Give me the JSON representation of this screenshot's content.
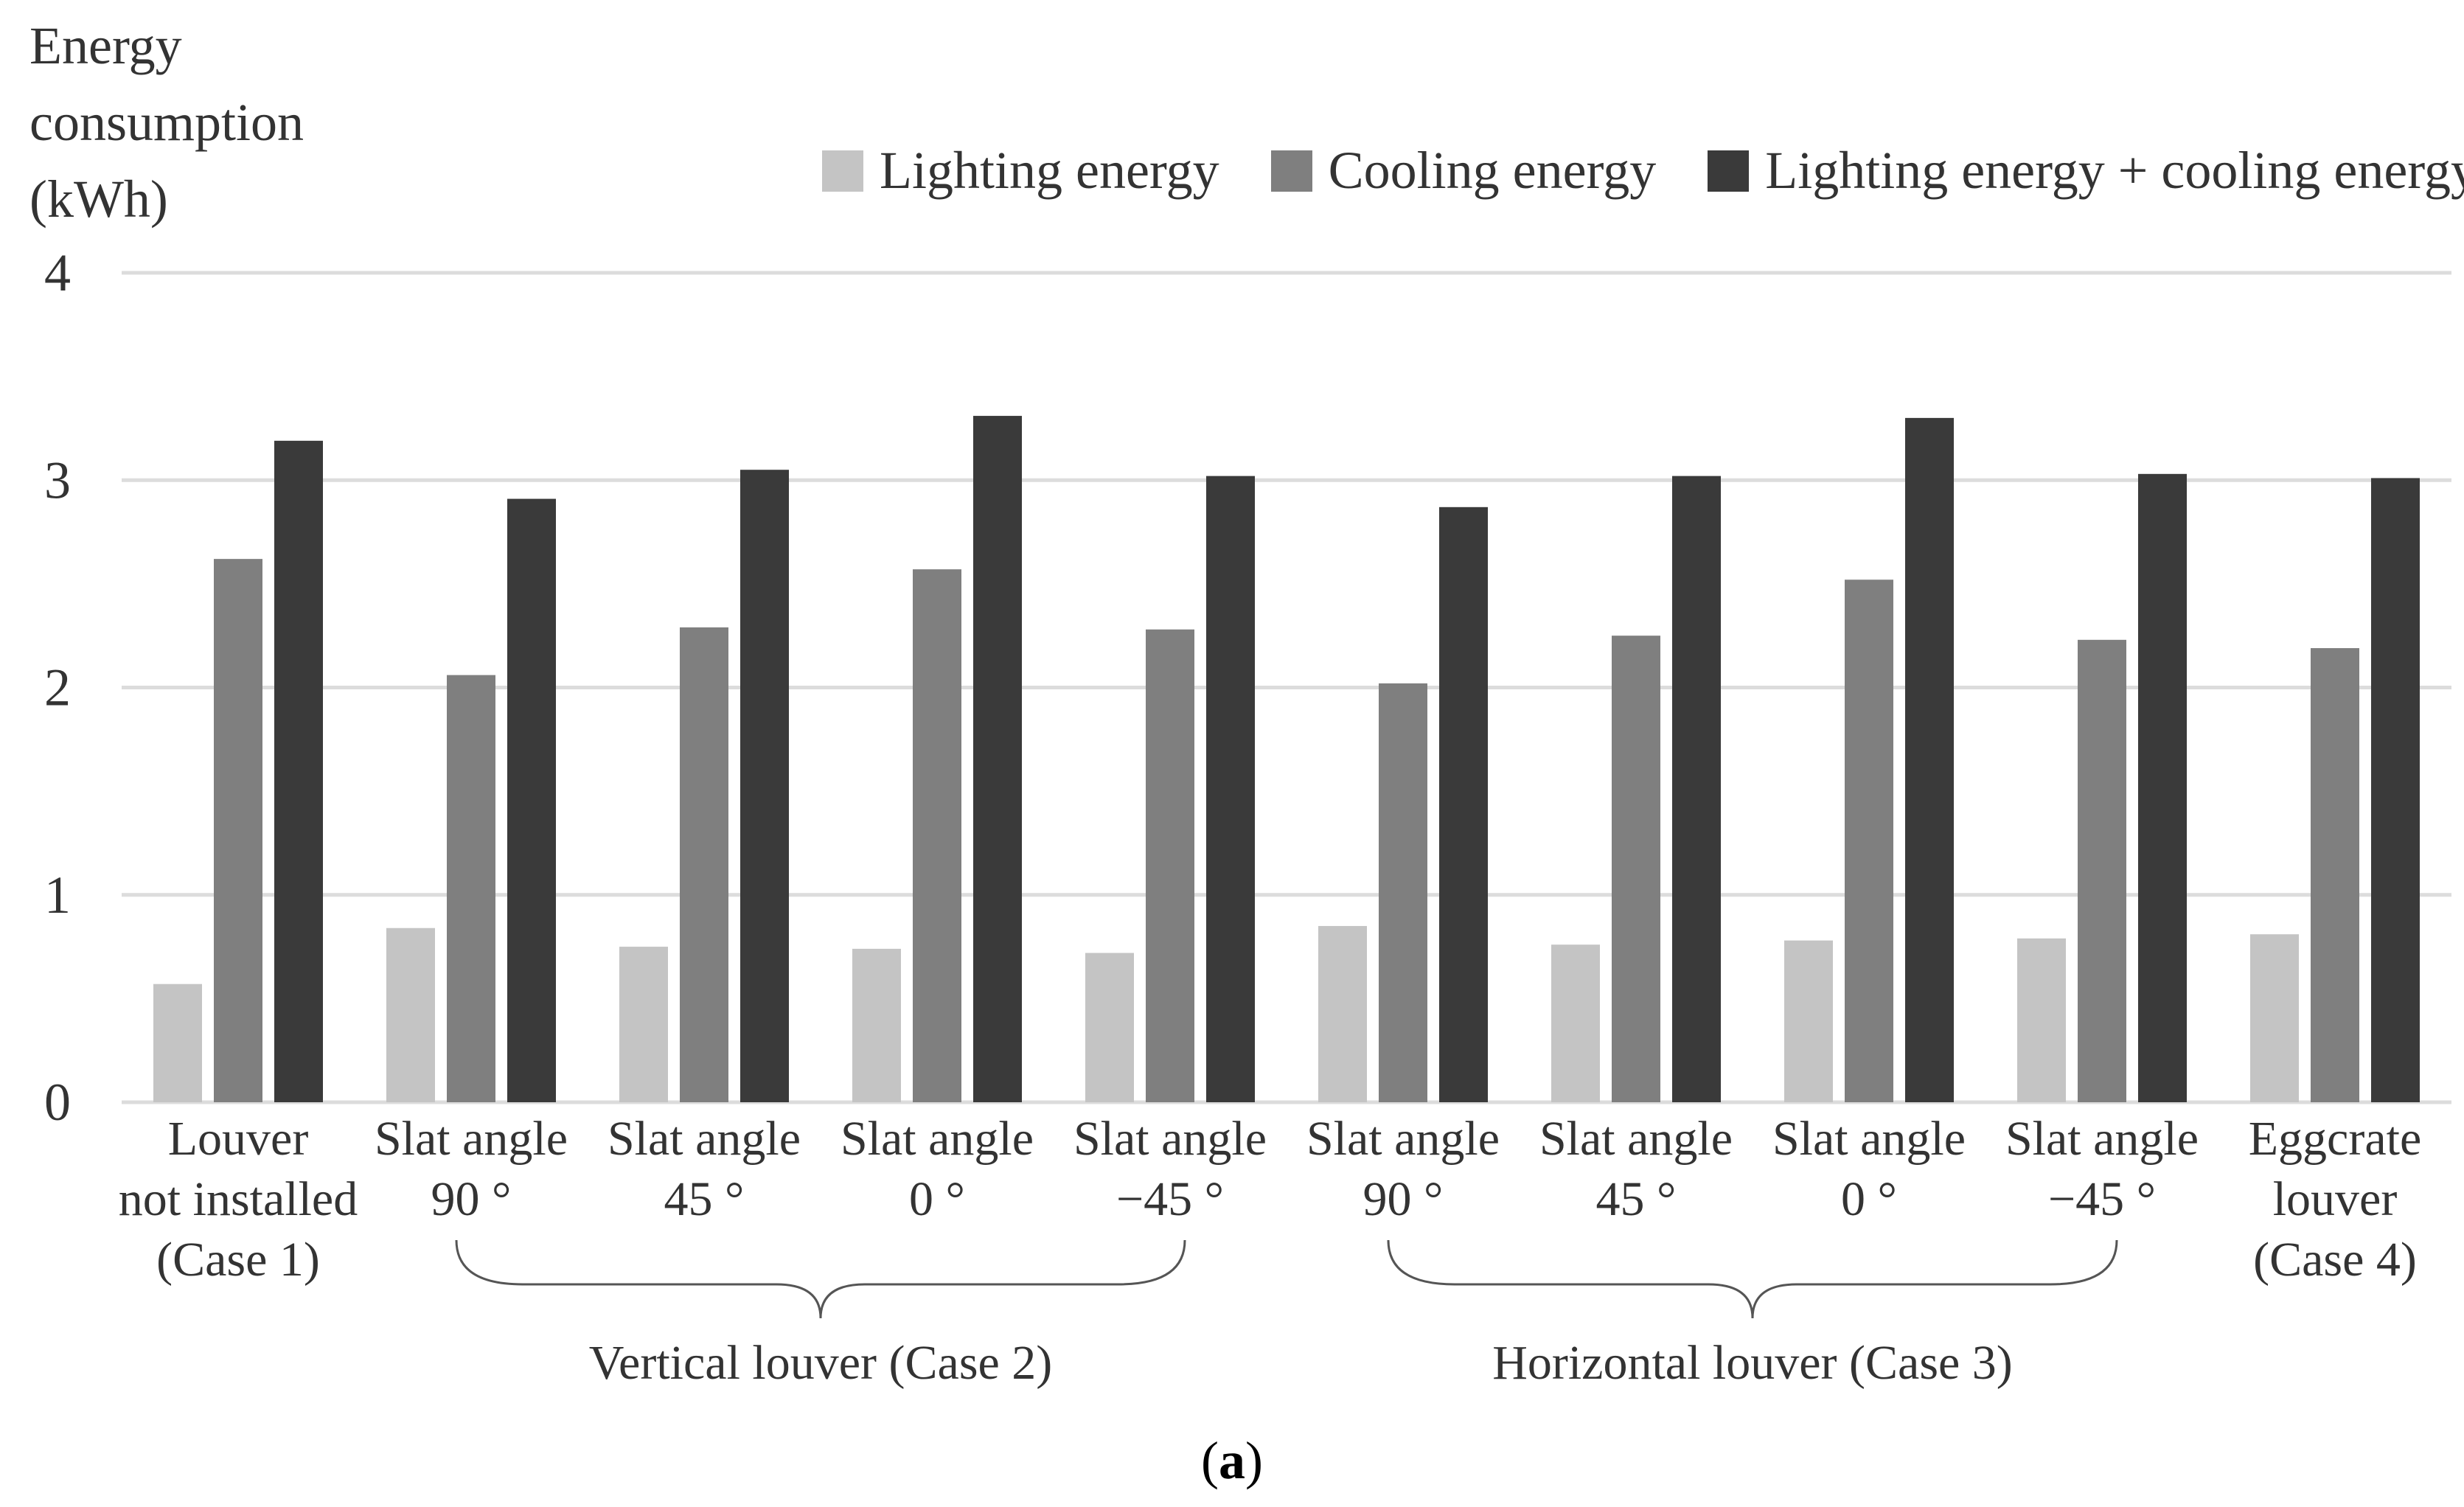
{
  "caption": {
    "open": "(",
    "letter": "a",
    "close": ")"
  },
  "colors": {
    "lighting": "#c4c4c4",
    "cooling": "#7f7f7f",
    "total": "#3a3a3a",
    "grid": "#dcdcdc",
    "text": "#333333"
  },
  "chart_data": {
    "type": "bar",
    "ylabel_lines": [
      "Energy",
      "consumption",
      "(kWh)"
    ],
    "ylim": [
      0,
      4
    ],
    "yticks": [
      0,
      1,
      2,
      3,
      4
    ],
    "grid": true,
    "legend_position": "top-right",
    "categories": [
      [
        "Louver",
        "not installed",
        "(Case 1)"
      ],
      [
        "Slat angle",
        "90 °"
      ],
      [
        "Slat angle",
        "45 °"
      ],
      [
        "Slat angle",
        "0 °"
      ],
      [
        "Slat angle",
        "−45 °"
      ],
      [
        "Slat angle",
        "90 °"
      ],
      [
        "Slat angle",
        "45 °"
      ],
      [
        "Slat angle",
        "0 °"
      ],
      [
        "Slat angle",
        "−45 °"
      ],
      [
        "Eggcrate",
        "louver",
        "(Case 4)"
      ]
    ],
    "series": [
      {
        "name": "Lighting energy",
        "color": "#c4c4c4",
        "values": [
          0.57,
          0.84,
          0.75,
          0.74,
          0.72,
          0.85,
          0.76,
          0.78,
          0.79,
          0.81
        ]
      },
      {
        "name": "Cooling energy",
        "color": "#7f7f7f",
        "values": [
          2.62,
          2.06,
          2.29,
          2.57,
          2.28,
          2.02,
          2.25,
          2.52,
          2.23,
          2.19
        ]
      },
      {
        "name": "Lighting energy + cooling energy",
        "color": "#3a3a3a",
        "values": [
          3.19,
          2.91,
          3.05,
          3.31,
          3.02,
          2.87,
          3.02,
          3.3,
          3.03,
          3.01
        ]
      }
    ],
    "groups": [
      {
        "label": "Vertical louver  (Case 2)",
        "from": 1,
        "to": 4
      },
      {
        "label": "Horizontal louver (Case 3)",
        "from": 5,
        "to": 8
      }
    ]
  }
}
